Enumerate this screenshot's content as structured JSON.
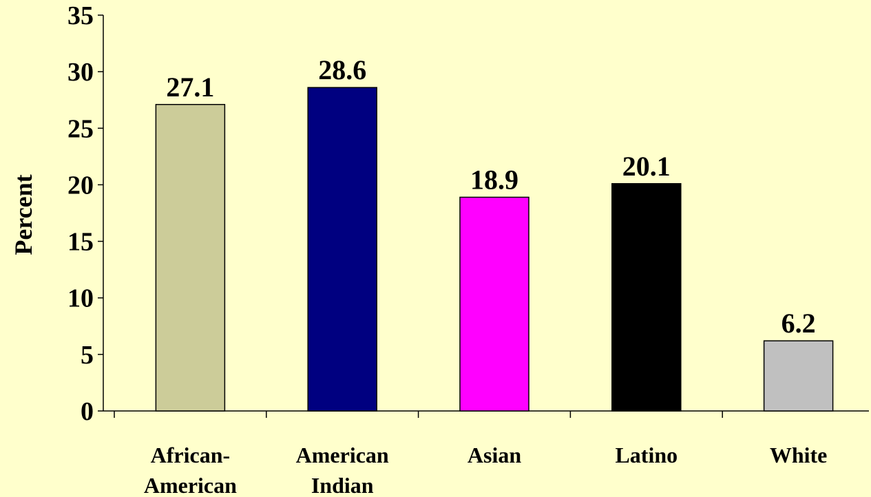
{
  "chart_data": {
    "type": "bar",
    "title": "",
    "xlabel": "",
    "ylabel": "Percent",
    "ylim": [
      0,
      35
    ],
    "yticks": [
      0,
      5,
      10,
      15,
      20,
      25,
      30,
      35
    ],
    "grid": false,
    "legend": "none",
    "categories": [
      [
        "African-",
        "American"
      ],
      [
        "American",
        "Indian"
      ],
      [
        "Asian"
      ],
      [
        "Latino"
      ],
      [
        "White"
      ]
    ],
    "values": [
      27.1,
      28.6,
      18.9,
      20.1,
      6.2
    ],
    "data_labels": [
      "27.1",
      "28.6",
      "18.9",
      "20.1",
      "6.2"
    ],
    "colors": [
      "#CCCC99",
      "#000080",
      "#FF00FF",
      "#000000",
      "#C0C0C0"
    ],
    "background": "#FFFFCC"
  }
}
